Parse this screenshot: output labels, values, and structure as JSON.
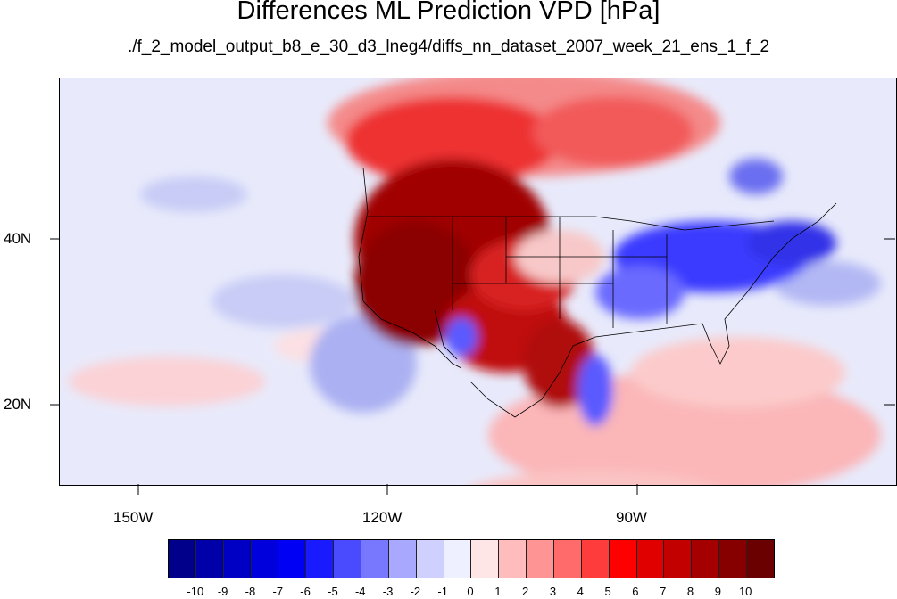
{
  "title": "Differences ML Prediction VPD [hPa]",
  "subtitle": "./f_2_model_output_b8_e_30_d3_lneg4/diffs_nn_dataset_2007_week_21_ens_1_f_2",
  "lat_labels": [
    "40N",
    "20N"
  ],
  "lon_labels": [
    "150W",
    "120W",
    "90W"
  ],
  "colorbar": {
    "labels": [
      "-10",
      "-9",
      "-8",
      "-7",
      "-6",
      "-5",
      "-4",
      "-3",
      "-2",
      "-1",
      "0",
      "1",
      "2",
      "3",
      "4",
      "5",
      "6",
      "7",
      "8",
      "9",
      "10"
    ],
    "colors": [
      "#00008b",
      "#0000a8",
      "#0000c4",
      "#0000dd",
      "#0000f5",
      "#1a1aff",
      "#4a4aff",
      "#7878ff",
      "#a8a8ff",
      "#d0d0ff",
      "#eef0ff",
      "#ffe6e6",
      "#ffbcbc",
      "#ff9494",
      "#ff6a6a",
      "#ff3c3c",
      "#ff0000",
      "#e00000",
      "#c20000",
      "#a40000",
      "#870000",
      "#6b0000"
    ]
  },
  "map": {
    "background_color": "#e6e9fb",
    "features": [
      "coastlines",
      "state-borders",
      "country-borders"
    ]
  }
}
